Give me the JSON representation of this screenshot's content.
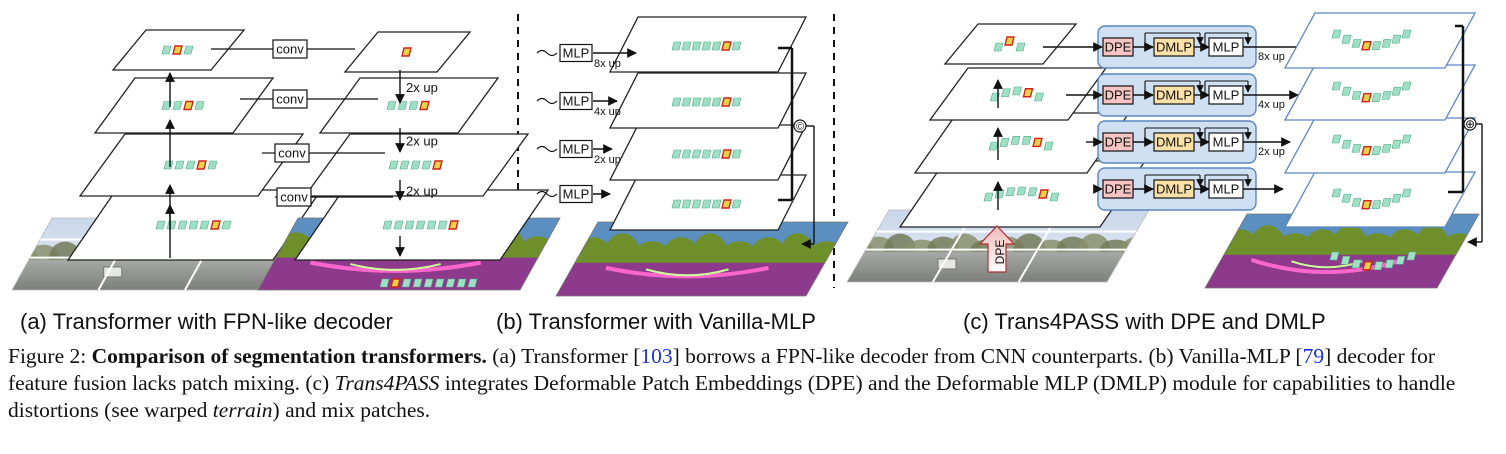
{
  "panel_a": {
    "subcaption": "(a) Transformer with FPN-like decoder",
    "conv_labels": [
      "conv",
      "conv",
      "conv",
      "conv"
    ],
    "up_labels": [
      "2x up",
      "2x up",
      "2x up"
    ]
  },
  "panel_b": {
    "subcaption": "(b) Transformer with Vanilla-MLP",
    "mlp_labels": [
      "MLP",
      "MLP",
      "MLP",
      "MLP"
    ],
    "up_labels": [
      "8x up",
      "4x up",
      "2x up"
    ],
    "concat_symbol": "©"
  },
  "panel_c": {
    "subcaption": "(c) Trans4PASS with DPE and DMLP",
    "dpe_label": "DPE",
    "dmlp_label": "DMLP",
    "mlp_label": "MLP",
    "up_labels": [
      "8x up",
      "4x up",
      "2x up"
    ],
    "sum_symbol": "⊕",
    "dpe_arrow_label": "DPE"
  },
  "caption": {
    "prefix": "Figure 2: ",
    "bold": "Comparison of segmentation transformers.",
    "p1": " (a) Transformer [",
    "ref1": "103",
    "p2": "] borrows a FPN-like decoder from CNN counterparts. (b) Vanilla-MLP [",
    "ref2": "79",
    "p3": "] decoder for feature fusion lacks patch mixing. (c) ",
    "italic1": "Trans4PASS",
    "p4": " integrates Deformable Patch Embeddings (DPE) and the Deformable MLP (DMLP) module for capabilities to handle distortions (see warped ",
    "italic2": "terrain",
    "p5": ") and mix patches."
  },
  "colors": {
    "patch": "#9ee0c4",
    "patch_highlight": "#e8d24a",
    "patch_highlight_border": "#d0231c",
    "dpe_fill": "#f7c4c4",
    "dmlp_fill": "#fbe0a8",
    "module_bg": "#cfe0f3",
    "module_border": "#5b86c0",
    "seg_purple": "#8e3a8c",
    "seg_green": "#6f8f2a",
    "seg_sky": "#5a8fc0"
  }
}
